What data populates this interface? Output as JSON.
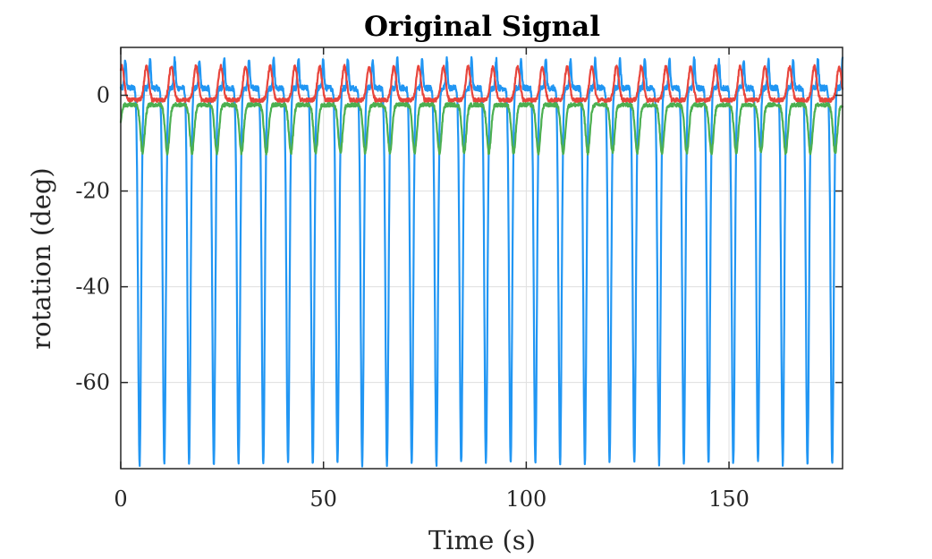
{
  "chart_data": {
    "type": "line",
    "title": "Original Signal",
    "xlabel": "Time (s)",
    "ylabel": "rotation (deg)",
    "xlim": [
      0,
      178
    ],
    "ylim": [
      -78,
      10
    ],
    "xticks": [
      0,
      50,
      100,
      150
    ],
    "yticks": [
      0,
      -20,
      -40,
      -60
    ],
    "grid": true,
    "legend": "none",
    "series": [
      {
        "color": "#2196f3",
        "period_s": 6.1,
        "phase_s": 1.6,
        "min": -77,
        "max": 8,
        "description_shape": "deep periodic dips"
      },
      {
        "color": "#e8453c",
        "period_s": 6.1,
        "phase_s": 1.6,
        "min": -1,
        "max": 6
      },
      {
        "color": "#4caf50",
        "period_s": 6.1,
        "phase_s": 1.6,
        "min": -12,
        "max": -1
      }
    ]
  }
}
